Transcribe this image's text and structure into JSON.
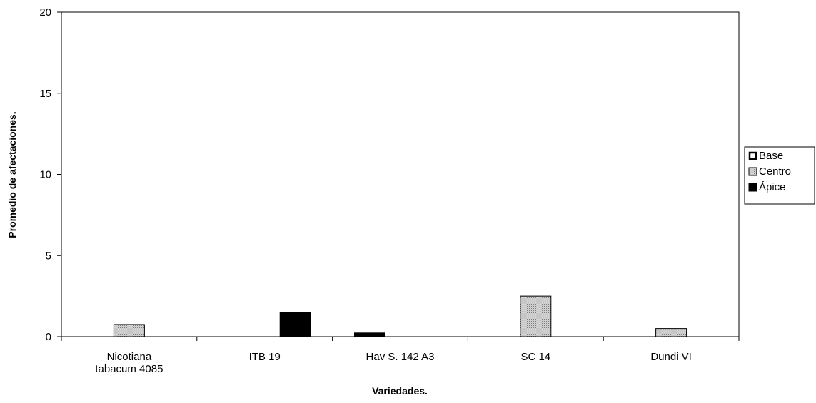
{
  "chart_data": {
    "type": "bar",
    "title": "",
    "xlabel": "Variedades.",
    "ylabel": "Promedio de afectaciones.",
    "ylim": [
      0,
      20
    ],
    "yticks": [
      0,
      5,
      10,
      15,
      20
    ],
    "grid": false,
    "legend_position": "right",
    "categories": [
      [
        "Nicotiana",
        "tabacum 4085"
      ],
      [
        "ITB 19"
      ],
      [
        "Hav S. 142 A3"
      ],
      [
        "SC 14"
      ],
      [
        "Dundi VI"
      ]
    ],
    "series": [
      {
        "name": "Base",
        "values": [
          0,
          0,
          0.25,
          0,
          0
        ],
        "color": "#ffffff",
        "style": "outline"
      },
      {
        "name": "Centro",
        "values": [
          0.75,
          0,
          0,
          2.5,
          0.5
        ],
        "color": "#c8c8c8",
        "style": "dotted"
      },
      {
        "name": "Ápice",
        "values": [
          0,
          1.5,
          0,
          0,
          0
        ],
        "color": "#000000",
        "style": "solid"
      }
    ]
  }
}
